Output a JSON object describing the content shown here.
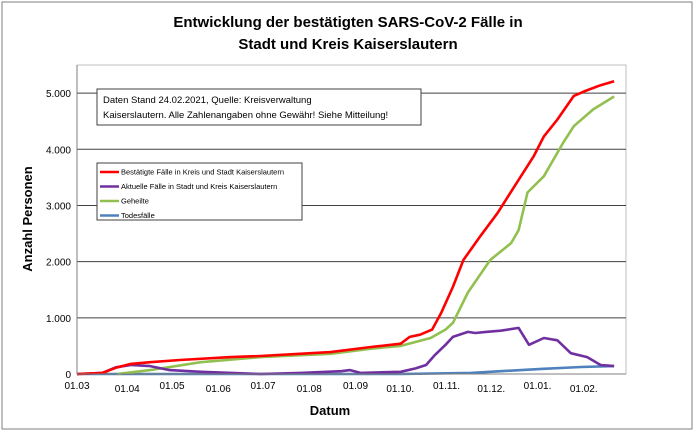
{
  "chart_data": {
    "type": "line",
    "title": [
      "Entwicklung der bestätigten SARS-CoV-2 Fälle in",
      "Stadt und Kreis Kaiserslautern"
    ],
    "xlabel": "Datum",
    "ylabel": "Anzahl Personen",
    "xlim": [
      "2020-03-01",
      "2021-03-04"
    ],
    "ylim": [
      0,
      5500
    ],
    "y_ticks": [
      0,
      1000,
      2000,
      3000,
      4000,
      5000
    ],
    "y_tick_labels": [
      "0",
      "1.000",
      "2.000",
      "3.000",
      "4.000",
      "5.000"
    ],
    "x_ticks": [
      "2020-03-01",
      "2020-04-01",
      "2020-05-01",
      "2020-06-01",
      "2020-07-01",
      "2020-08-01",
      "2020-09-01",
      "2020-10-01",
      "2020-11-01",
      "2020-12-01",
      "2021-01-01",
      "2021-02-01"
    ],
    "x_tick_labels": [
      "01.03",
      "01.04",
      "01.05",
      "01.06",
      "01.07",
      "01.08",
      "01.09",
      "01.10.",
      "01.11.",
      "01.12.",
      "01.01.",
      "01.02."
    ],
    "grid": "horizontal",
    "legend_placement": "upper-left",
    "annotation": [
      "Daten Stand 24.02.2021, Quelle: Kreisverwaltung",
      "Kaiserslautern. Alle Zahlenangaben ohne Gewähr! Siehe Mitteilung!"
    ],
    "series": [
      {
        "name": "Bestätigte Fälle in Kreis und Stadt Kaiserslautern",
        "color": "#ff0000",
        "x": [
          "2020-03-01",
          "2020-03-18",
          "2020-03-27",
          "2020-04-06",
          "2020-04-19",
          "2020-05-09",
          "2020-06-12",
          "2020-07-02",
          "2020-08-18",
          "2020-09-14",
          "2020-10-04",
          "2020-10-10",
          "2020-10-17",
          "2020-10-25",
          "2020-10-31",
          "2020-11-08",
          "2020-11-15",
          "2020-11-26",
          "2020-12-08",
          "2020-12-19",
          "2021-01-01",
          "2021-01-08",
          "2021-01-17",
          "2021-01-28",
          "2021-02-04",
          "2021-02-15",
          "2021-02-24"
        ],
        "y": [
          0,
          20,
          110,
          180,
          210,
          250,
          300,
          320,
          390,
          480,
          540,
          660,
          700,
          790,
          1080,
          1550,
          2030,
          2440,
          2870,
          3330,
          3870,
          4230,
          4530,
          4950,
          5030,
          5140,
          5210
        ]
      },
      {
        "name": "Aktuelle Fälle in Stadt und Kreis Kaiserslautern",
        "color": "#7030a0",
        "x": [
          "2020-03-01",
          "2020-03-18",
          "2020-03-27",
          "2020-04-06",
          "2020-04-19",
          "2020-05-02",
          "2020-05-23",
          "2020-07-02",
          "2020-07-29",
          "2020-08-25",
          "2020-08-31",
          "2020-09-07",
          "2020-10-04",
          "2020-10-14",
          "2020-10-21",
          "2020-10-27",
          "2020-11-03",
          "2020-11-08",
          "2020-11-18",
          "2020-11-23",
          "2020-11-30",
          "2020-12-10",
          "2020-12-22",
          "2020-12-29",
          "2021-01-08",
          "2021-01-17",
          "2021-01-26",
          "2021-02-06",
          "2021-02-15",
          "2021-02-24"
        ],
        "y": [
          0,
          20,
          120,
          160,
          140,
          70,
          40,
          0,
          20,
          50,
          70,
          20,
          40,
          100,
          160,
          340,
          520,
          660,
          750,
          730,
          750,
          770,
          820,
          520,
          640,
          600,
          370,
          300,
          160,
          140
        ]
      },
      {
        "name": "Geheilte",
        "color": "#92c050",
        "x": [
          "2020-03-28",
          "2020-04-19",
          "2020-05-23",
          "2020-07-02",
          "2020-08-18",
          "2020-09-14",
          "2020-10-04",
          "2020-10-24",
          "2020-11-03",
          "2020-11-08",
          "2020-11-18",
          "2020-12-03",
          "2020-12-17",
          "2020-12-22",
          "2020-12-28",
          "2021-01-08",
          "2021-01-21",
          "2021-01-28",
          "2021-02-10",
          "2021-02-24"
        ],
        "y": [
          0,
          70,
          210,
          300,
          360,
          450,
          500,
          640,
          790,
          910,
          1450,
          2030,
          2330,
          2560,
          3230,
          3520,
          4120,
          4410,
          4710,
          4940
        ]
      },
      {
        "name": "Todesfälle",
        "color": "#4f81bd",
        "x": [
          "2020-03-01",
          "2020-10-04",
          "2020-11-20",
          "2020-12-10",
          "2021-01-06",
          "2021-02-02",
          "2021-02-24"
        ],
        "y": [
          0,
          0,
          20,
          50,
          90,
          125,
          140
        ]
      }
    ]
  }
}
